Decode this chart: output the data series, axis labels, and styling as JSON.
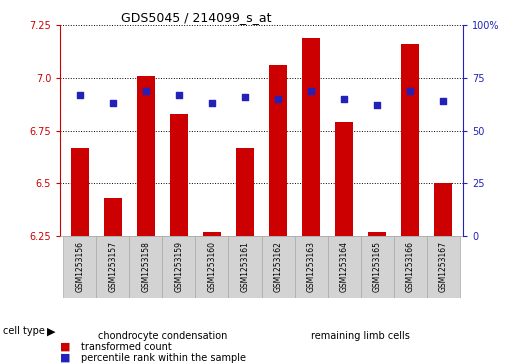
{
  "title": "GDS5045 / 214099_s_at",
  "samples": [
    "GSM1253156",
    "GSM1253157",
    "GSM1253158",
    "GSM1253159",
    "GSM1253160",
    "GSM1253161",
    "GSM1253162",
    "GSM1253163",
    "GSM1253164",
    "GSM1253165",
    "GSM1253166",
    "GSM1253167"
  ],
  "transformed_count": [
    6.67,
    6.43,
    7.01,
    6.83,
    6.27,
    6.67,
    7.06,
    7.19,
    6.79,
    6.27,
    7.16,
    6.5
  ],
  "percentile_rank": [
    67,
    63,
    69,
    67,
    63,
    66,
    65,
    69,
    65,
    62,
    69,
    64
  ],
  "ylim_left": [
    6.25,
    7.25
  ],
  "yticks_left": [
    6.25,
    6.5,
    6.75,
    7.0,
    7.25
  ],
  "yticks_right": [
    0,
    25,
    50,
    75,
    100
  ],
  "bar_color": "#cc0000",
  "dot_color": "#2222bb",
  "bar_width": 0.55,
  "dot_size": 18,
  "chondrocyte_label": "chondrocyte condensation",
  "remaining_label": "remaining limb cells",
  "cell_band_color": "#90ee90",
  "sample_box_color": "#d3d3d3",
  "cell_type_text": "cell type",
  "legend_red_label": "transformed count",
  "legend_blue_label": "percentile rank within the sample",
  "left_axis_color": "#cc0000",
  "right_axis_color": "#2222bb",
  "title_fontsize": 9,
  "tick_fontsize": 7,
  "label_fontsize": 7,
  "sample_fontsize": 5.5
}
